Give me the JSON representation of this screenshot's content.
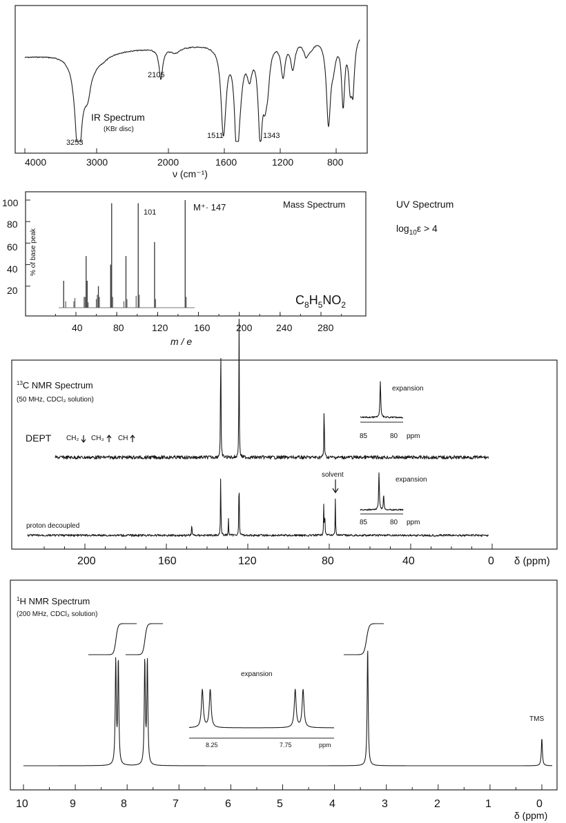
{
  "chart_data": [
    {
      "type": "line",
      "id": "ir",
      "title": "IR Spectrum",
      "subtitle": "(KBr disc)",
      "xlabel": "ν (cm⁻¹)",
      "xlim": [
        4000,
        600
      ],
      "ticks": [
        4000,
        3000,
        2000,
        1600,
        1200,
        800
      ],
      "tick_labels": [
        "4000",
        "3000",
        "2000",
        "1600",
        "1200",
        "800"
      ],
      "annotations": [
        "3253",
        "2105",
        "1511",
        "1343"
      ],
      "peaks_cm1": [
        3253,
        2105,
        1511,
        1343
      ]
    },
    {
      "type": "bar",
      "id": "ms",
      "title": "Mass Spectrum",
      "ylabel": "% of base peak",
      "xlabel": "m / e",
      "ylim": [
        0,
        100
      ],
      "yticks": [
        "20",
        "40",
        "60",
        "80",
        "100"
      ],
      "xticks": [
        "40",
        "80",
        "120",
        "160",
        "200",
        "240",
        "280"
      ],
      "formula": {
        "c": "C",
        "c_n": "8",
        "h": "H",
        "h_n": "5",
        "rest": "NO",
        "rest_n": "2"
      },
      "molecular_ion_label": "M⁺· 147",
      "peak_label": "101",
      "peaks": [
        {
          "x": 28,
          "y": 25
        },
        {
          "x": 30,
          "y": 6
        },
        {
          "x": 38,
          "y": 6
        },
        {
          "x": 39,
          "y": 9
        },
        {
          "x": 48,
          "y": 10
        },
        {
          "x": 49,
          "y": 10
        },
        {
          "x": 50,
          "y": 48
        },
        {
          "x": 51,
          "y": 25
        },
        {
          "x": 52,
          "y": 5
        },
        {
          "x": 60,
          "y": 8
        },
        {
          "x": 61,
          "y": 12
        },
        {
          "x": 62,
          "y": 20
        },
        {
          "x": 63,
          "y": 10
        },
        {
          "x": 74,
          "y": 40
        },
        {
          "x": 75,
          "y": 97
        },
        {
          "x": 76,
          "y": 10
        },
        {
          "x": 87,
          "y": 6
        },
        {
          "x": 89,
          "y": 48
        },
        {
          "x": 90,
          "y": 8
        },
        {
          "x": 99,
          "y": 11
        },
        {
          "x": 101,
          "y": 97
        },
        {
          "x": 102,
          "y": 12
        },
        {
          "x": 117,
          "y": 61
        },
        {
          "x": 118,
          "y": 8
        },
        {
          "x": 147,
          "y": 100
        },
        {
          "x": 148,
          "y": 10
        }
      ]
    },
    {
      "type": "line",
      "id": "uv",
      "title": "UV Spectrum",
      "text_pre": "log",
      "text_sub": "10",
      "text_post": "ε  >  4"
    },
    {
      "type": "line",
      "id": "c13",
      "title_sup": "13",
      "title": "C NMR Spectrum",
      "subtitle": "(50 MHz, CDCl₃ solution)",
      "xlabel": "δ (ppm)",
      "xticks": [
        "200",
        "160",
        "120",
        "80",
        "40",
        "0"
      ],
      "dept_label": "DEPT",
      "dept_legend": [
        "CH₂",
        "CH₃",
        "CH"
      ],
      "proton_label": "proton decoupled",
      "solvent_label": "solvent",
      "expansion_label": "expansion",
      "expansion_ticks": [
        "85",
        "80",
        "ppm"
      ],
      "dept_peaks_ppm": [
        133.3,
        124.3,
        82.5
      ],
      "decoupled_peaks_ppm": [
        147.5,
        133.3,
        129.5,
        124.3,
        82.7,
        82.2,
        77.0
      ]
    },
    {
      "type": "line",
      "id": "h1",
      "title_sup": "1",
      "title": "H NMR Spectrum",
      "subtitle": "(200 MHz, CDCl₃ solution)",
      "xlabel": "δ (ppm)",
      "xticks": [
        "10",
        "9",
        "8",
        "7",
        "6",
        "5",
        "4",
        "3",
        "2",
        "1",
        "0"
      ],
      "expansion_label": "expansion",
      "expansion_ticks": [
        "8.25",
        "7.75",
        "ppm"
      ],
      "tms_label": "TMS",
      "peaks_ppm": [
        8.19,
        7.63,
        3.36,
        0.0
      ]
    }
  ]
}
